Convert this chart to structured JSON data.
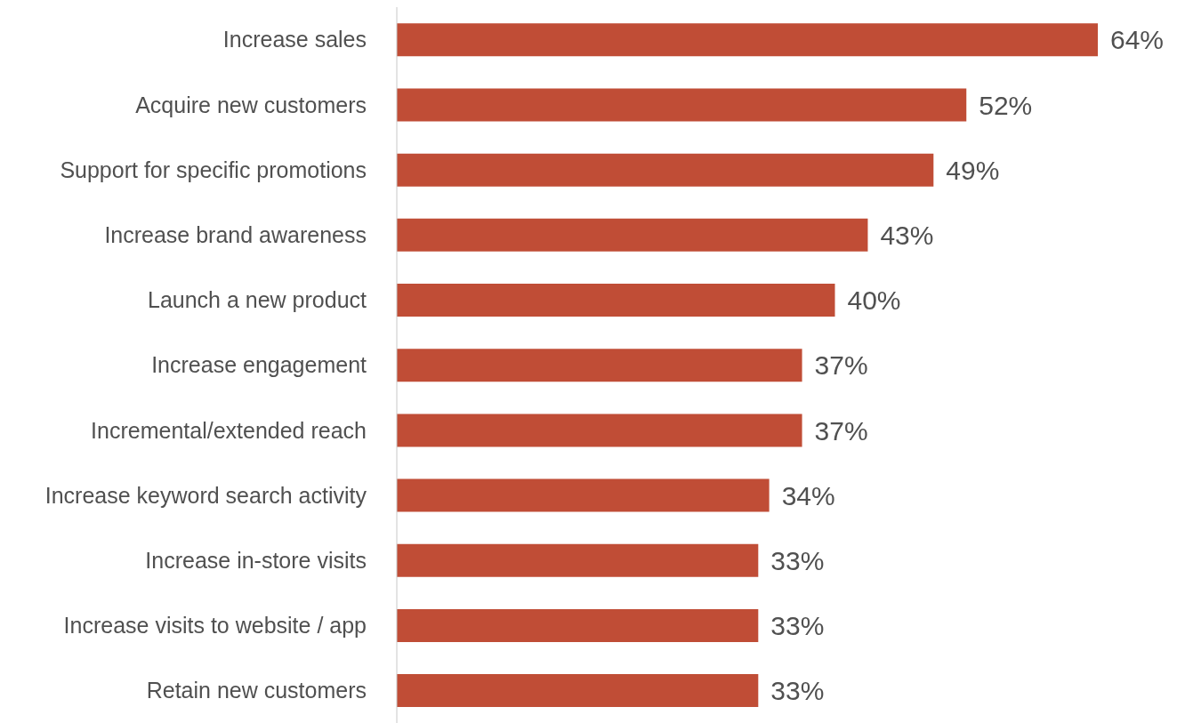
{
  "chart_data": {
    "type": "bar",
    "orientation": "horizontal",
    "tick_labels": "y",
    "grid": false,
    "legend": false,
    "categories": [
      "Increase sales",
      "Acquire new customers",
      "Support for specific promotions",
      "Increase brand awareness",
      "Launch a new product",
      "Increase engagement",
      "Incremental/extended reach ",
      "Increase keyword search activity",
      "Increase in-store visits",
      "Increase visits to website / app",
      "Retain new customers"
    ],
    "values": [
      64,
      52,
      49,
      43,
      40,
      37,
      37,
      34,
      33,
      33,
      33
    ],
    "value_labels": [
      "64%",
      "52%",
      "49%",
      "43%",
      "40%",
      "37%",
      "37%",
      "34%",
      "33%",
      "33%",
      "33%"
    ],
    "color": "#c04d36"
  }
}
